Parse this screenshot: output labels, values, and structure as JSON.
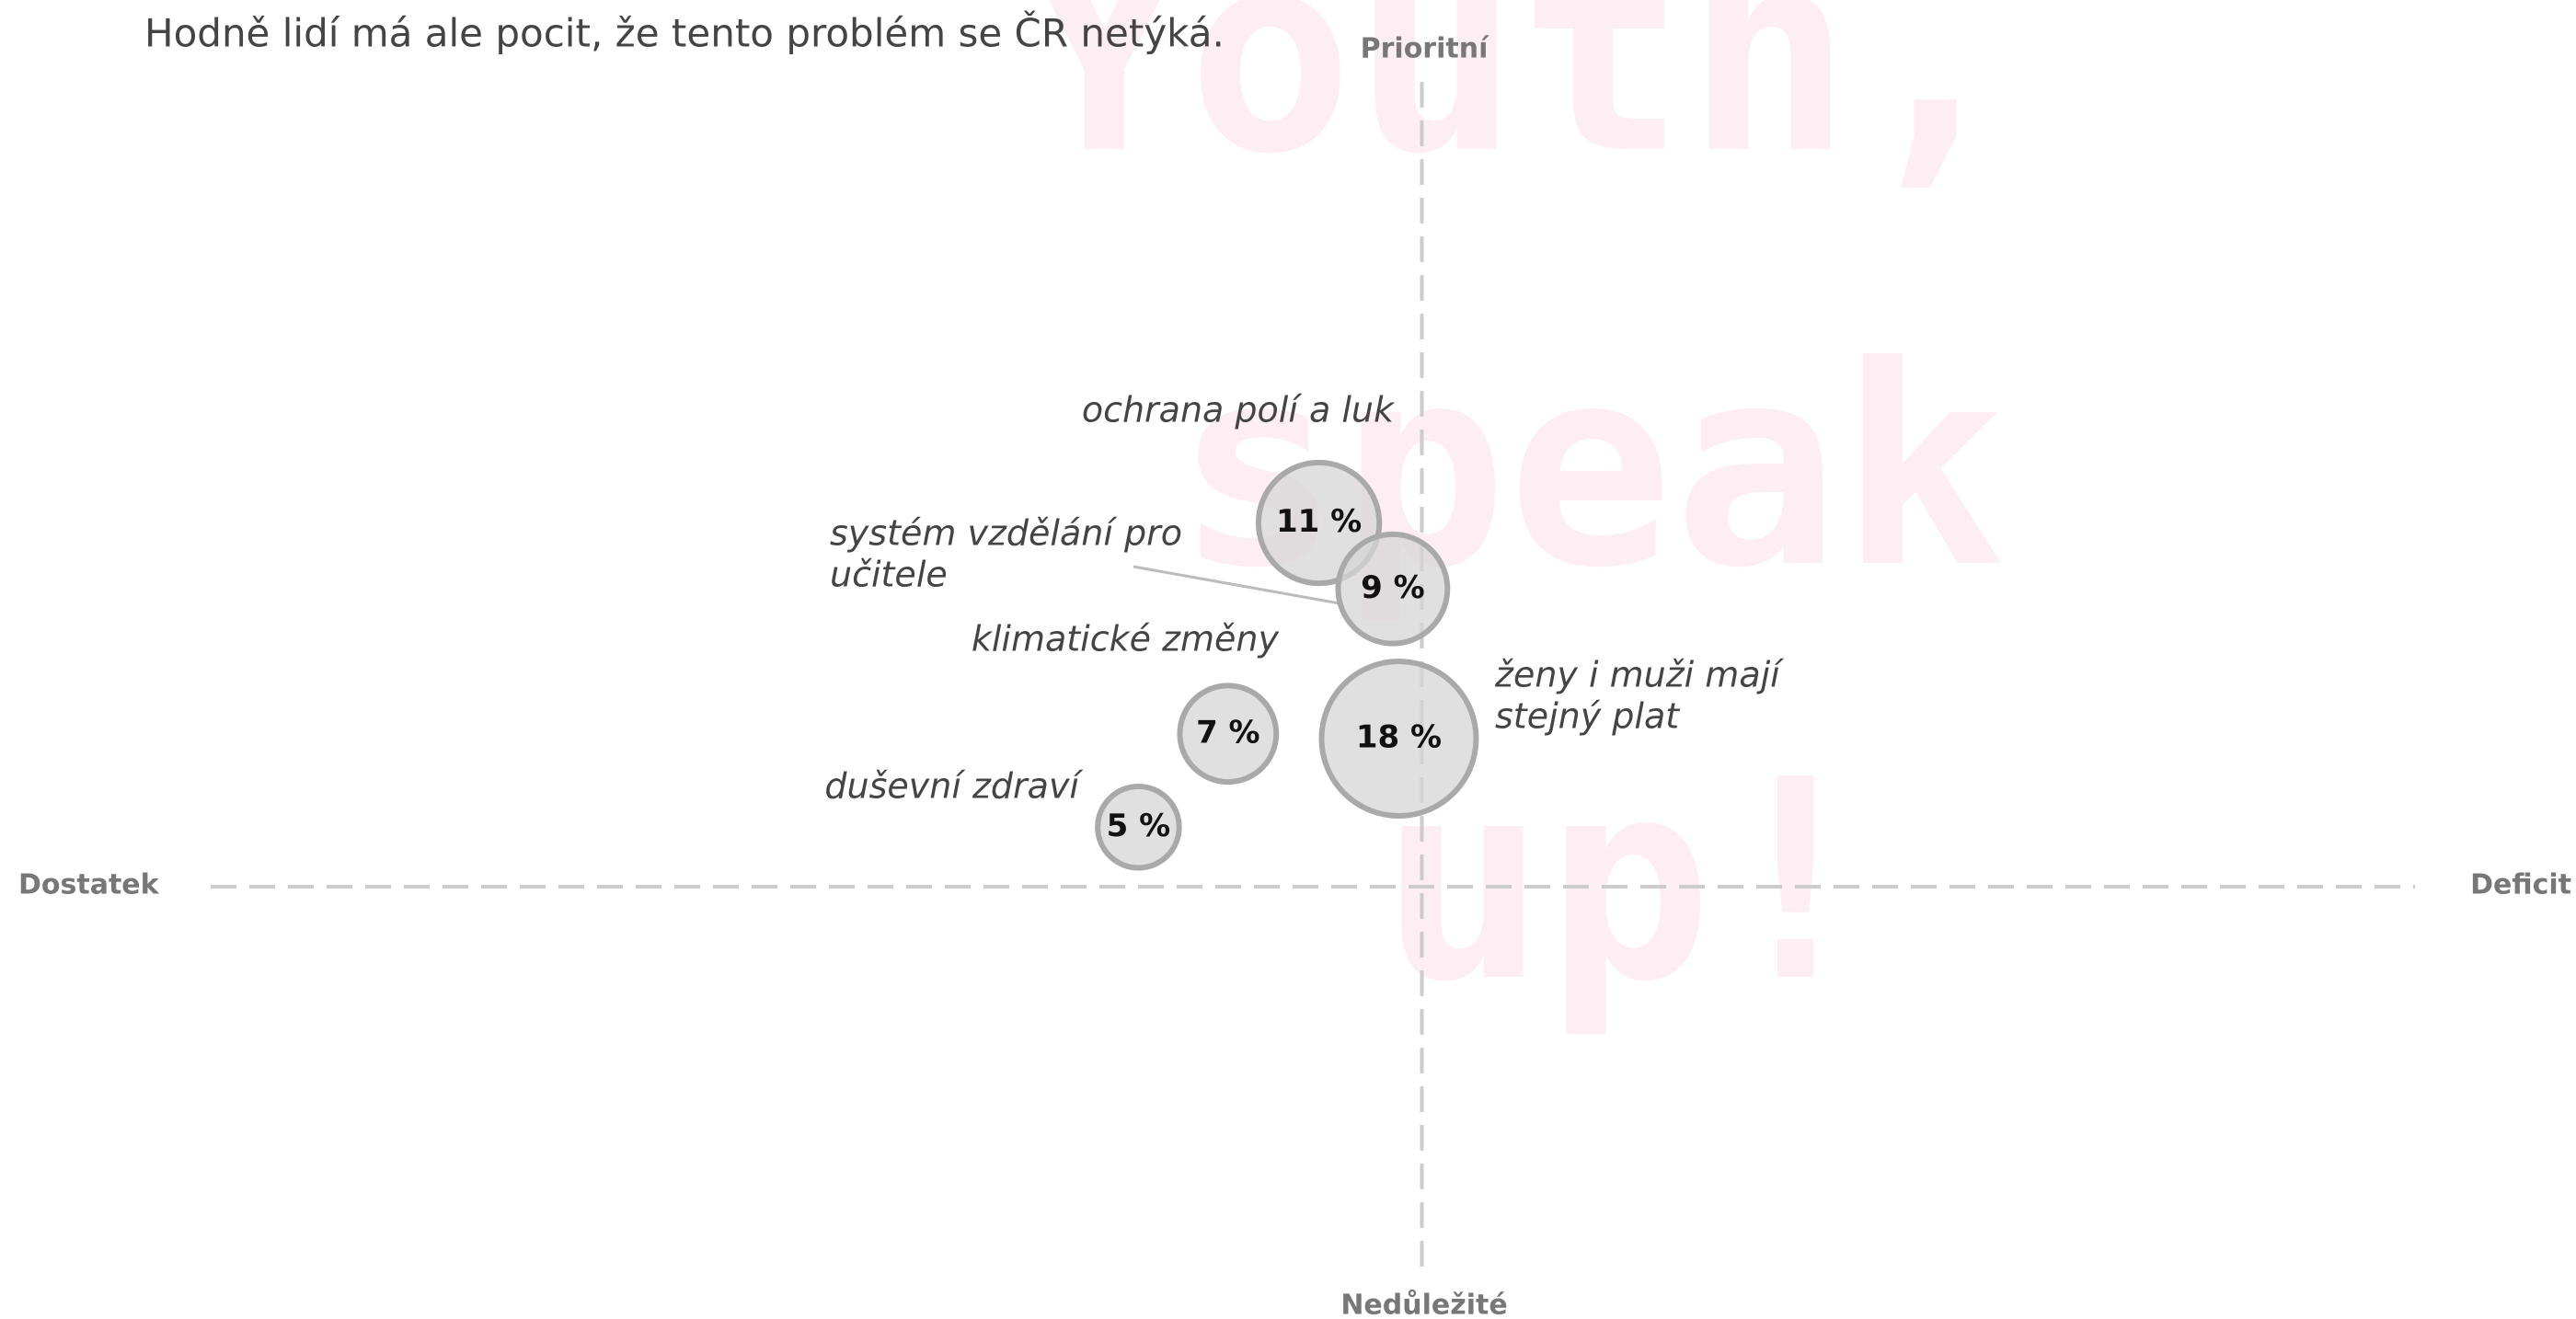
{
  "chart_data": {
    "type": "bubble",
    "subtitle": "Hodně lidí má ale pocit, že tento problém se ČR netýká.",
    "watermark": [
      "Youth,",
      "speak",
      "up!"
    ],
    "x_left_label": "Dostatek",
    "x_right_label": "Deficit",
    "y_top_label": "Prioritní",
    "y_bottom_label": "Nedůležité",
    "xlim": [
      -100,
      82
    ],
    "ylim": [
      -48,
      100
    ],
    "x": [
      -8.5,
      -2.4,
      -16,
      -1.9,
      -23.4
    ],
    "values": [
      45.2,
      37,
      19,
      18.4,
      7.4
    ],
    "sizes": [
      11,
      9,
      7,
      18,
      5
    ],
    "size_labels": [
      "11 %",
      "9 %",
      "7 %",
      "18 %",
      "5 %"
    ],
    "labels": [
      [
        "ochrana polí a luk"
      ],
      [
        "systém vzdělání pro",
        "učitele"
      ],
      [
        "klimatické změny"
      ],
      [
        "ženy i muži mají",
        "stejný plat"
      ],
      [
        "duševní zdraví"
      ]
    ],
    "color": "#d6d6d6",
    "edge_color": "#a9a9a9"
  }
}
